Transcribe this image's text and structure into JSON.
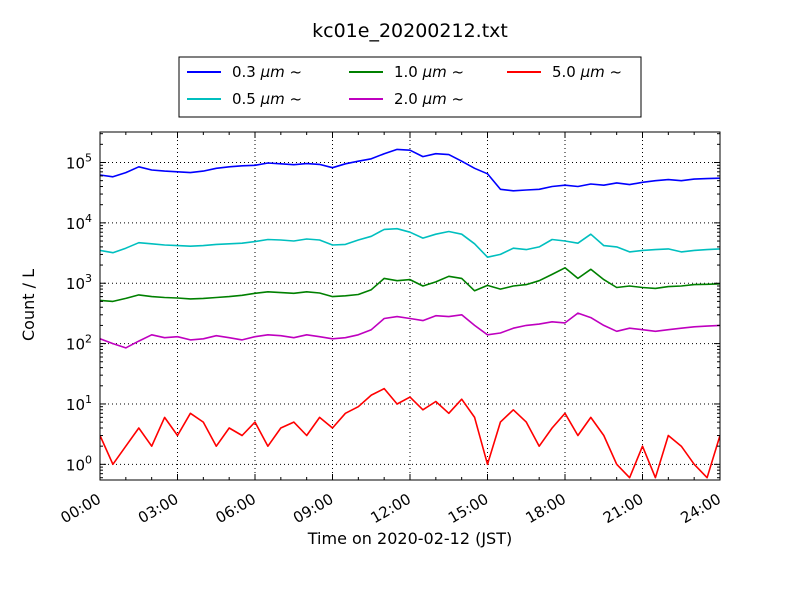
{
  "chart_data": {
    "type": "line",
    "title": "kc01e_20200212.txt",
    "xlabel": "Time on 2020-02-12 (JST)",
    "ylabel": "Count / L",
    "yscale": "log",
    "ylim": [
      0.55,
      320000
    ],
    "xlim_hours": [
      0,
      24
    ],
    "grid": true,
    "legend_placement": "top-center",
    "x_tick_labels": [
      "00:00",
      "03:00",
      "06:00",
      "09:00",
      "12:00",
      "15:00",
      "18:00",
      "21:00",
      "24:00"
    ],
    "y_tick_labels": [
      {
        "value": 1,
        "base": "10",
        "exp": "0"
      },
      {
        "value": 10,
        "base": "10",
        "exp": "1"
      },
      {
        "value": 100,
        "base": "10",
        "exp": "2"
      },
      {
        "value": 1000,
        "base": "10",
        "exp": "3"
      },
      {
        "value": 10000,
        "base": "10",
        "exp": "4"
      },
      {
        "value": 100000,
        "base": "10",
        "exp": "5"
      }
    ],
    "x_hours": [
      0,
      0.5,
      1,
      1.5,
      2,
      2.5,
      3,
      3.5,
      4,
      4.5,
      5,
      5.5,
      6,
      6.5,
      7,
      7.5,
      8,
      8.5,
      9,
      9.5,
      10,
      10.5,
      11,
      11.5,
      12,
      12.5,
      13,
      13.5,
      14,
      14.5,
      15,
      15.5,
      16,
      16.5,
      17,
      17.5,
      18,
      18.5,
      19,
      19.5,
      20,
      20.5,
      21,
      21.5,
      22,
      22.5,
      23,
      23.5,
      24
    ],
    "series": [
      {
        "name": "0.3",
        "unit": "µm",
        "suffix": "~",
        "color": "#0000ff",
        "values": [
          62000,
          58000,
          68000,
          85000,
          75000,
          72000,
          70000,
          68000,
          72000,
          80000,
          85000,
          88000,
          90000,
          98000,
          95000,
          92000,
          96000,
          93000,
          82000,
          95000,
          105000,
          115000,
          140000,
          165000,
          160000,
          125000,
          140000,
          135000,
          105000,
          80000,
          65000,
          36000,
          34000,
          35000,
          36000,
          40000,
          42000,
          40000,
          44000,
          42000,
          46000,
          43000,
          47000,
          50000,
          52000,
          50000,
          53000,
          54000,
          55000
        ]
      },
      {
        "name": "0.5",
        "unit": "µm",
        "suffix": "~",
        "color": "#00bfbf",
        "values": [
          3500,
          3200,
          3800,
          4700,
          4500,
          4300,
          4200,
          4100,
          4200,
          4400,
          4500,
          4600,
          4900,
          5300,
          5200,
          5000,
          5400,
          5200,
          4300,
          4400,
          5200,
          6000,
          7800,
          8000,
          7000,
          5600,
          6500,
          7200,
          6500,
          4500,
          2700,
          3000,
          3800,
          3600,
          4000,
          5300,
          5000,
          4600,
          6500,
          4200,
          4000,
          3300,
          3500,
          3600,
          3700,
          3300,
          3500,
          3600,
          3700
        ]
      },
      {
        "name": "1.0",
        "unit": "µm",
        "suffix": "~",
        "color": "#008000",
        "values": [
          520,
          500,
          560,
          640,
          600,
          580,
          570,
          550,
          560,
          580,
          600,
          630,
          680,
          720,
          700,
          680,
          720,
          690,
          600,
          620,
          650,
          780,
          1200,
          1100,
          1150,
          900,
          1050,
          1300,
          1200,
          750,
          920,
          800,
          900,
          950,
          1100,
          1400,
          1800,
          1200,
          1700,
          1150,
          850,
          900,
          850,
          820,
          880,
          900,
          950,
          960,
          980
        ]
      },
      {
        "name": "2.0",
        "unit": "µm",
        "suffix": "~",
        "color": "#bf00bf",
        "values": [
          120,
          100,
          85,
          110,
          140,
          125,
          130,
          115,
          120,
          135,
          125,
          115,
          130,
          140,
          135,
          125,
          140,
          130,
          120,
          125,
          140,
          170,
          260,
          280,
          260,
          240,
          290,
          280,
          300,
          200,
          140,
          150,
          180,
          200,
          210,
          230,
          220,
          320,
          270,
          200,
          160,
          180,
          170,
          160,
          170,
          180,
          190,
          195,
          200
        ]
      },
      {
        "name": "5.0",
        "unit": "µm",
        "suffix": "~",
        "color": "#ff0000",
        "values": [
          3,
          1,
          2,
          4,
          2,
          6,
          3,
          7,
          5,
          2,
          4,
          3,
          5,
          2,
          4,
          5,
          3,
          6,
          4,
          7,
          9,
          14,
          18,
          10,
          13,
          8,
          11,
          7,
          12,
          6,
          1,
          5,
          8,
          5,
          2,
          4,
          7,
          3,
          6,
          3,
          1,
          0.6,
          2,
          0.6,
          3,
          2,
          1,
          0.6,
          3
        ]
      }
    ]
  }
}
